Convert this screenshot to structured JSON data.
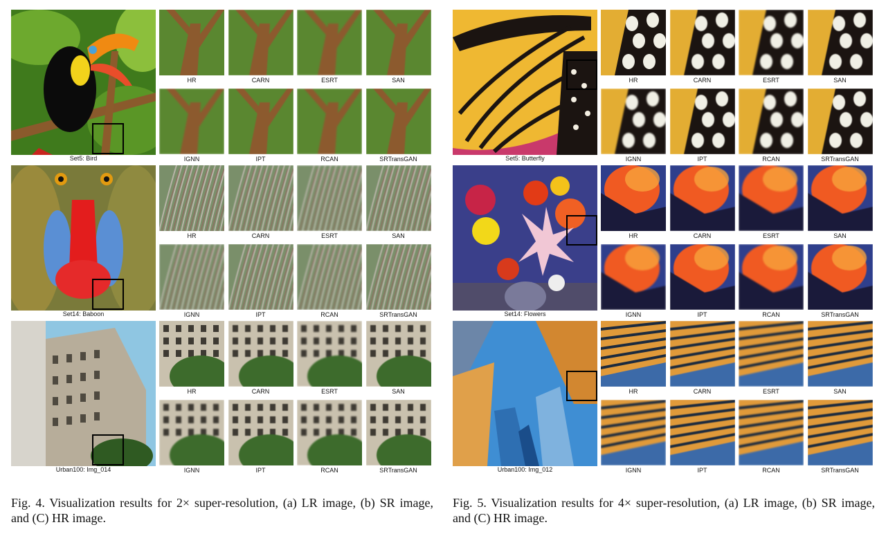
{
  "fig4": {
    "rows": [
      {
        "image_label": "Set5: Bird",
        "top": [
          "HR",
          "CARN",
          "ESRT",
          "SAN"
        ],
        "bottom": [
          "IGNN",
          "IPT",
          "RCAN",
          "SRTransGAN"
        ]
      },
      {
        "image_label": "Set14: Baboon",
        "top": [
          "HR",
          "CARN",
          "ESRT",
          "SAN"
        ],
        "bottom": [
          "IGNN",
          "IPT",
          "RCAN",
          "SRTransGAN"
        ]
      },
      {
        "image_label": "Urban100: Img_014",
        "top": [
          "HR",
          "CARN",
          "ESRT",
          "SAN"
        ],
        "bottom": [
          "IGNN",
          "IPT",
          "RCAN",
          "SRTransGAN"
        ]
      }
    ],
    "caption": "Fig. 4.  Visualization results for 2× super-resolution, (a) LR image, (b) SR image, and (C) HR image."
  },
  "fig5": {
    "rows": [
      {
        "image_label": "Set5: Butterfly",
        "top": [
          "HR",
          "CARN",
          "ESRT",
          "SAN"
        ],
        "bottom": [
          "IGNN",
          "IPT",
          "RCAN",
          "SRTransGAN"
        ]
      },
      {
        "image_label": "Set14: Flowers",
        "top": [
          "HR",
          "CARN",
          "ESRT",
          "SAN"
        ],
        "bottom": [
          "IGNN",
          "IPT",
          "RCAN",
          "SRTransGAN"
        ]
      },
      {
        "image_label": "Urban100: Img_012",
        "top": [
          "HR",
          "CARN",
          "ESRT",
          "SAN"
        ],
        "bottom": [
          "IGNN",
          "IPT",
          "RCAN",
          "SRTransGAN"
        ]
      }
    ],
    "caption": "Fig. 5.  Visualization results for 4× super-resolution, (a) LR image, (b) SR image, and (C) HR image."
  }
}
